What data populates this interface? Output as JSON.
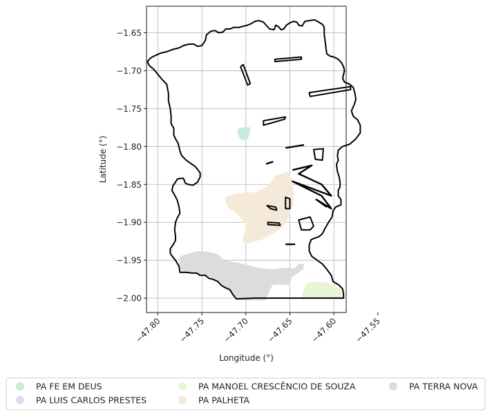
{
  "chart_data": {
    "type": "map",
    "xlabel": "Longitude (°)",
    "ylabel": "Latitude (°)",
    "xlim": [
      -47.813,
      -47.586
    ],
    "ylim": [
      -2.019,
      -1.615
    ],
    "x_ticks": [
      -47.8,
      -47.75,
      -47.7,
      -47.65,
      -47.6,
      -47.55
    ],
    "x_tick_labels": [
      "−47.80",
      "−47.75",
      "−47.70",
      "−47.65",
      "−47.60",
      "−47.55"
    ],
    "y_ticks": [
      -1.65,
      -1.7,
      -1.75,
      -1.8,
      -1.85,
      -1.9,
      -1.95,
      -2.0
    ],
    "y_tick_labels": [
      "−1.65",
      "−1.70",
      "−1.75",
      "−1.80",
      "−1.85",
      "−1.90",
      "−1.95",
      "−2.00"
    ],
    "grid": true,
    "legend_position": "bottom",
    "legend": [
      {
        "label": "PA FE EM DEUS",
        "color": "#c9ebd9"
      },
      {
        "label": "PA LUIS CARLOS PRESTES",
        "color": "#dcdcf2"
      },
      {
        "label": "PA MANOEL CRESCÊNCIO DE SOUZA",
        "color": "#e8f5d4"
      },
      {
        "label": "PA PALHETA",
        "color": "#f5e9da"
      },
      {
        "label": "PA TERRA NOVA",
        "color": "#dcdcdc"
      }
    ],
    "areas": [
      {
        "name": "PA FE EM DEUS",
        "color": "#c9ebd9",
        "polygon": [
          [
            -47.71,
            -1.777
          ],
          [
            -47.7,
            -1.774
          ],
          [
            -47.695,
            -1.775
          ],
          [
            -47.696,
            -1.785
          ],
          [
            -47.698,
            -1.79
          ],
          [
            -47.705,
            -1.792
          ],
          [
            -47.708,
            -1.787
          ]
        ]
      },
      {
        "name": "PA MANOEL CRESCÊNCIO DE SOUZA",
        "color": "#e8f5d4",
        "polygon": [
          [
            -47.637,
            -2.001
          ],
          [
            -47.634,
            -1.987
          ],
          [
            -47.63,
            -1.98
          ],
          [
            -47.62,
            -1.978
          ],
          [
            -47.607,
            -1.98
          ],
          [
            -47.598,
            -1.985
          ],
          [
            -47.592,
            -1.99
          ],
          [
            -47.59,
            -2.001
          ]
        ]
      },
      {
        "name": "PA PALHETA",
        "color": "#f5e9da",
        "polygon": [
          [
            -47.723,
            -1.867
          ],
          [
            -47.712,
            -1.862
          ],
          [
            -47.7,
            -1.861
          ],
          [
            -47.688,
            -1.86
          ],
          [
            -47.675,
            -1.852
          ],
          [
            -47.666,
            -1.838
          ],
          [
            -47.652,
            -1.833
          ],
          [
            -47.647,
            -1.845
          ],
          [
            -47.646,
            -1.86
          ],
          [
            -47.646,
            -1.875
          ],
          [
            -47.65,
            -1.89
          ],
          [
            -47.657,
            -1.905
          ],
          [
            -47.663,
            -1.91
          ],
          [
            -47.672,
            -1.917
          ],
          [
            -47.682,
            -1.923
          ],
          [
            -47.69,
            -1.925
          ],
          [
            -47.698,
            -1.928
          ],
          [
            -47.704,
            -1.925
          ],
          [
            -47.702,
            -1.915
          ],
          [
            -47.7,
            -1.905
          ],
          [
            -47.705,
            -1.895
          ],
          [
            -47.711,
            -1.888
          ],
          [
            -47.719,
            -1.882
          ],
          [
            -47.723,
            -1.875
          ]
        ]
      },
      {
        "name": "PA TERRA NOVA",
        "color": "#dcdcdc",
        "polygon": [
          [
            -47.775,
            -1.945
          ],
          [
            -47.768,
            -1.942
          ],
          [
            -47.755,
            -1.938
          ],
          [
            -47.742,
            -1.939
          ],
          [
            -47.732,
            -1.942
          ],
          [
            -47.725,
            -1.95
          ],
          [
            -47.71,
            -1.953
          ],
          [
            -47.7,
            -1.956
          ],
          [
            -47.69,
            -1.959
          ],
          [
            -47.68,
            -1.961
          ],
          [
            -47.67,
            -1.962
          ],
          [
            -47.655,
            -1.96
          ],
          [
            -47.645,
            -1.961
          ],
          [
            -47.64,
            -1.955
          ],
          [
            -47.634,
            -1.955
          ],
          [
            -47.635,
            -1.962
          ],
          [
            -47.642,
            -1.968
          ],
          [
            -47.648,
            -1.973
          ],
          [
            -47.65,
            -1.983
          ],
          [
            -47.66,
            -1.982
          ],
          [
            -47.67,
            -1.983
          ],
          [
            -47.678,
            -2.003
          ],
          [
            -47.7,
            -2.003
          ],
          [
            -47.711,
            -2.001
          ],
          [
            -47.72,
            -1.99
          ],
          [
            -47.73,
            -1.978
          ],
          [
            -47.74,
            -1.972
          ],
          [
            -47.752,
            -1.968
          ],
          [
            -47.762,
            -1.966
          ],
          [
            -47.772,
            -1.965
          ],
          [
            -47.776,
            -1.958
          ]
        ]
      }
    ],
    "boundary": [
      [
        -47.812,
        -1.688
      ],
      [
        -47.808,
        -1.683
      ],
      [
        -47.803,
        -1.68
      ],
      [
        -47.797,
        -1.677
      ],
      [
        -47.79,
        -1.675
      ],
      [
        -47.783,
        -1.672
      ],
      [
        -47.776,
        -1.67
      ],
      [
        -47.771,
        -1.667
      ],
      [
        -47.765,
        -1.665
      ],
      [
        -47.759,
        -1.665
      ],
      [
        -47.755,
        -1.668
      ],
      [
        -47.75,
        -1.667
      ],
      [
        -47.746,
        -1.66
      ],
      [
        -47.745,
        -1.653
      ],
      [
        -47.74,
        -1.648
      ],
      [
        -47.735,
        -1.647
      ],
      [
        -47.731,
        -1.65
      ],
      [
        -47.726,
        -1.649
      ],
      [
        -47.723,
        -1.645
      ],
      [
        -47.718,
        -1.645
      ],
      [
        -47.714,
        -1.643
      ],
      [
        -47.708,
        -1.643
      ],
      [
        -47.705,
        -1.642
      ],
      [
        -47.698,
        -1.64
      ],
      [
        -47.694,
        -1.638
      ],
      [
        -47.69,
        -1.635
      ],
      [
        -47.685,
        -1.634
      ],
      [
        -47.68,
        -1.636
      ],
      [
        -47.677,
        -1.64
      ],
      [
        -47.673,
        -1.645
      ],
      [
        -47.668,
        -1.646
      ],
      [
        -47.666,
        -1.64
      ],
      [
        -47.663,
        -1.642
      ],
      [
        -47.66,
        -1.646
      ],
      [
        -47.657,
        -1.645
      ],
      [
        -47.654,
        -1.64
      ],
      [
        -47.65,
        -1.637
      ],
      [
        -47.646,
        -1.635
      ],
      [
        -47.642,
        -1.636
      ],
      [
        -47.64,
        -1.64
      ],
      [
        -47.636,
        -1.641
      ],
      [
        -47.633,
        -1.635
      ],
      [
        -47.628,
        -1.634
      ],
      [
        -47.622,
        -1.633
      ],
      [
        -47.617,
        -1.636
      ],
      [
        -47.613,
        -1.639
      ],
      [
        -47.611,
        -1.643
      ],
      [
        -47.611,
        -1.652
      ],
      [
        -47.61,
        -1.66
      ],
      [
        -47.609,
        -1.67
      ],
      [
        -47.608,
        -1.678
      ],
      [
        -47.604,
        -1.681
      ],
      [
        -47.6,
        -1.682
      ],
      [
        -47.595,
        -1.685
      ],
      [
        -47.591,
        -1.69
      ],
      [
        -47.589,
        -1.695
      ],
      [
        -47.588,
        -1.7
      ],
      [
        -47.59,
        -1.71
      ],
      [
        -47.588,
        -1.715
      ],
      [
        -47.582,
        -1.718
      ],
      [
        -47.578,
        -1.722
      ],
      [
        -47.576,
        -1.73
      ],
      [
        -47.575,
        -1.738
      ],
      [
        -47.577,
        -1.745
      ],
      [
        -47.58,
        -1.753
      ],
      [
        -47.578,
        -1.76
      ],
      [
        -47.573,
        -1.765
      ],
      [
        -47.57,
        -1.772
      ],
      [
        -47.57,
        -1.782
      ],
      [
        -47.575,
        -1.79
      ],
      [
        -47.582,
        -1.797
      ],
      [
        -47.59,
        -1.8
      ],
      [
        -47.595,
        -1.805
      ],
      [
        -47.596,
        -1.812
      ],
      [
        -47.595,
        -1.818
      ],
      [
        -47.597,
        -1.824
      ],
      [
        -47.596,
        -1.833
      ],
      [
        -47.594,
        -1.84
      ],
      [
        -47.593,
        -1.847
      ],
      [
        -47.593,
        -1.853
      ],
      [
        -47.595,
        -1.858
      ],
      [
        -47.595,
        -1.865
      ],
      [
        -47.592,
        -1.87
      ],
      [
        -47.592,
        -1.877
      ],
      [
        -47.598,
        -1.88
      ],
      [
        -47.601,
        -1.885
      ],
      [
        -47.602,
        -1.893
      ],
      [
        -47.606,
        -1.9
      ],
      [
        -47.61,
        -1.908
      ],
      [
        -47.613,
        -1.915
      ],
      [
        -47.617,
        -1.919
      ],
      [
        -47.622,
        -1.921
      ],
      [
        -47.626,
        -1.923
      ],
      [
        -47.628,
        -1.93
      ],
      [
        -47.628,
        -1.938
      ],
      [
        -47.625,
        -1.945
      ],
      [
        -47.619,
        -1.95
      ],
      [
        -47.613,
        -1.955
      ],
      [
        -47.608,
        -1.962
      ],
      [
        -47.603,
        -1.97
      ],
      [
        -47.601,
        -1.978
      ],
      [
        -47.594,
        -1.983
      ],
      [
        -47.59,
        -1.988
      ],
      [
        -47.589,
        -1.995
      ],
      [
        -47.589,
        -2.0
      ],
      [
        -47.64,
        -2.0
      ],
      [
        -47.69,
        -2.0
      ],
      [
        -47.711,
        -2.001
      ],
      [
        -47.715,
        -1.995
      ],
      [
        -47.718,
        -1.989
      ],
      [
        -47.724,
        -1.986
      ],
      [
        -47.728,
        -1.983
      ],
      [
        -47.732,
        -1.978
      ],
      [
        -47.738,
        -1.975
      ],
      [
        -47.742,
        -1.974
      ],
      [
        -47.746,
        -1.97
      ],
      [
        -47.752,
        -1.97
      ],
      [
        -47.756,
        -1.967
      ],
      [
        -47.761,
        -1.967
      ],
      [
        -47.768,
        -1.966
      ],
      [
        -47.775,
        -1.966
      ],
      [
        -47.776,
        -1.958
      ],
      [
        -47.78,
        -1.95
      ],
      [
        -47.783,
        -1.946
      ],
      [
        -47.786,
        -1.941
      ],
      [
        -47.786,
        -1.935
      ],
      [
        -47.783,
        -1.93
      ],
      [
        -47.78,
        -1.924
      ],
      [
        -47.78,
        -1.918
      ],
      [
        -47.781,
        -1.91
      ],
      [
        -47.78,
        -1.9
      ],
      [
        -47.778,
        -1.894
      ],
      [
        -47.775,
        -1.888
      ],
      [
        -47.776,
        -1.88
      ],
      [
        -47.778,
        -1.871
      ],
      [
        -47.781,
        -1.864
      ],
      [
        -47.784,
        -1.858
      ],
      [
        -47.783,
        -1.852
      ],
      [
        -47.78,
        -1.847
      ],
      [
        -47.778,
        -1.843
      ],
      [
        -47.774,
        -1.842
      ],
      [
        -47.771,
        -1.842
      ],
      [
        -47.769,
        -1.848
      ],
      [
        -47.766,
        -1.85
      ],
      [
        -47.76,
        -1.851
      ],
      [
        -47.755,
        -1.847
      ],
      [
        -47.752,
        -1.84
      ],
      [
        -47.752,
        -1.835
      ],
      [
        -47.755,
        -1.83
      ],
      [
        -47.758,
        -1.826
      ],
      [
        -47.762,
        -1.823
      ],
      [
        -47.768,
        -1.818
      ],
      [
        -47.773,
        -1.812
      ],
      [
        -47.775,
        -1.806
      ],
      [
        -47.777,
        -1.796
      ],
      [
        -47.78,
        -1.79
      ],
      [
        -47.782,
        -1.785
      ],
      [
        -47.782,
        -1.776
      ],
      [
        -47.785,
        -1.77
      ],
      [
        -47.785,
        -1.76
      ],
      [
        -47.786,
        -1.75
      ],
      [
        -47.788,
        -1.74
      ],
      [
        -47.788,
        -1.73
      ],
      [
        -47.79,
        -1.718
      ],
      [
        -47.795,
        -1.712
      ],
      [
        -47.8,
        -1.705
      ],
      [
        -47.805,
        -1.698
      ],
      [
        -47.81,
        -1.693
      ]
    ],
    "parcels": [
      [
        [
          -47.706,
          -1.695
        ],
        [
          -47.703,
          -1.692
        ],
        [
          -47.695,
          -1.717
        ],
        [
          -47.698,
          -1.719
        ]
      ],
      [
        [
          -47.667,
          -1.688
        ],
        [
          -47.667,
          -1.685
        ],
        [
          -47.637,
          -1.682
        ],
        [
          -47.637,
          -1.685
        ]
      ],
      [
        [
          -47.627,
          -1.734
        ],
        [
          -47.628,
          -1.729
        ],
        [
          -47.581,
          -1.721
        ],
        [
          -47.581,
          -1.725
        ]
      ],
      [
        [
          -47.68,
          -1.772
        ],
        [
          -47.68,
          -1.766
        ],
        [
          -47.655,
          -1.761
        ],
        [
          -47.656,
          -1.764
        ]
      ],
      [
        [
          -47.621,
          -1.817
        ],
        [
          -47.623,
          -1.804
        ],
        [
          -47.612,
          -1.803
        ],
        [
          -47.613,
          -1.818
        ]
      ],
      [
        [
          -47.655,
          -1.867
        ],
        [
          -47.65,
          -1.869
        ],
        [
          -47.65,
          -1.882
        ],
        [
          -47.655,
          -1.882
        ]
      ],
      [
        [
          -47.637,
          -1.91
        ],
        [
          -47.64,
          -1.897
        ],
        [
          -47.627,
          -1.893
        ],
        [
          -47.623,
          -1.905
        ],
        [
          -47.627,
          -1.91
        ]
      ],
      [
        [
          -47.675,
          -1.9
        ],
        [
          -47.662,
          -1.901
        ],
        [
          -47.661,
          -1.904
        ],
        [
          -47.675,
          -1.903
        ]
      ],
      [
        [
          -47.676,
          -1.878
        ],
        [
          -47.666,
          -1.88
        ],
        [
          -47.665,
          -1.884
        ],
        [
          -47.672,
          -1.882
        ]
      ]
    ],
    "rivers": [
      [
        [
          -47.647,
          -1.831
        ],
        [
          -47.625,
          -1.825
        ],
        [
          -47.64,
          -1.836
        ],
        [
          -47.614,
          -1.85
        ],
        [
          -47.603,
          -1.865
        ],
        [
          -47.647,
          -1.846
        ],
        [
          -47.614,
          -1.865
        ],
        [
          -47.603,
          -1.882
        ],
        [
          -47.62,
          -1.87
        ],
        [
          -47.608,
          -1.88
        ]
      ],
      [
        [
          -47.655,
          -1.802
        ],
        [
          -47.634,
          -1.798
        ]
      ],
      [
        [
          -47.669,
          -1.82
        ],
        [
          -47.677,
          -1.823
        ]
      ],
      [
        [
          -47.655,
          -1.929
        ],
        [
          -47.644,
          -1.929
        ]
      ]
    ]
  }
}
